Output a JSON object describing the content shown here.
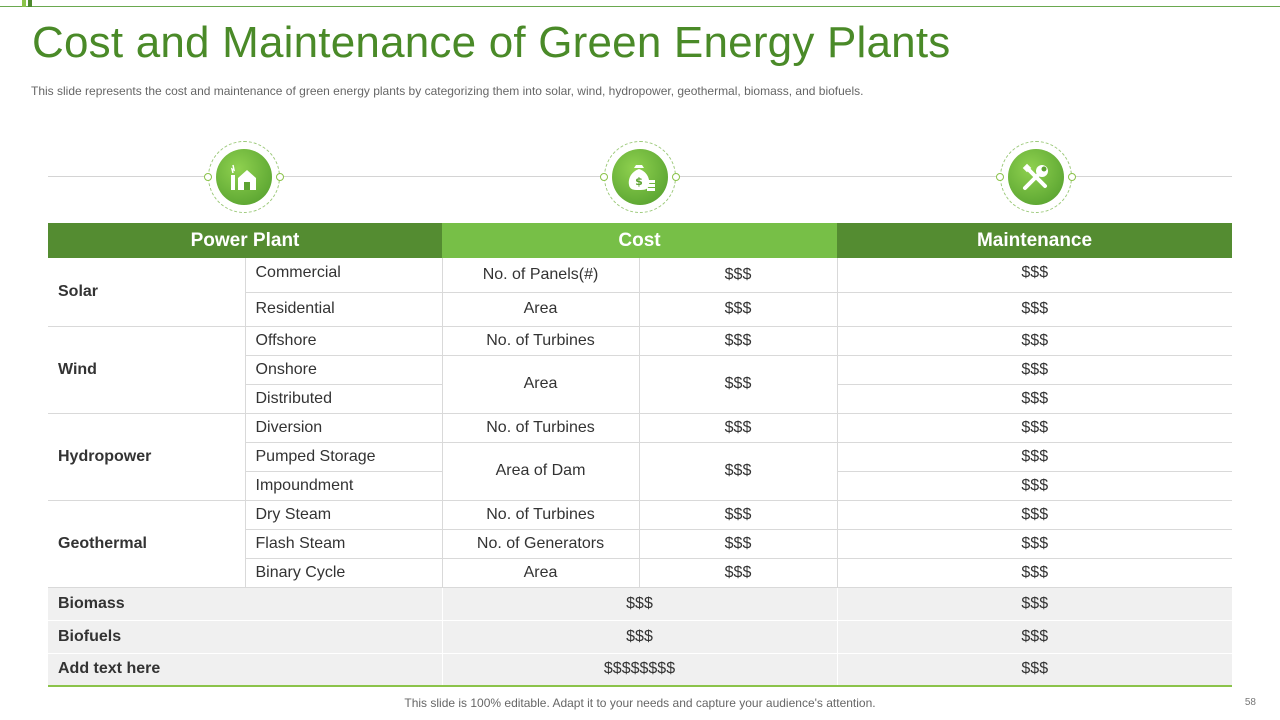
{
  "title": "Cost and Maintenance of Green Energy Plants",
  "subtitle": "This slide represents the cost and maintenance of green energy plants by categorizing them into solar, wind, hydropower,  geothermal,  biomass, and biofuels.",
  "headers": {
    "power_plant": "Power Plant",
    "cost": "Cost",
    "maintenance": "Maintenance"
  },
  "icons": [
    "power-plant-icon",
    "money-bag-icon",
    "tools-icon"
  ],
  "colors": {
    "title": "#4a8a28",
    "header_dark": "#548c31",
    "header_light": "#77bf47",
    "accent": "#8bc34a"
  },
  "rows": {
    "solar": {
      "label": "Solar",
      "commercial": {
        "label": "Commercial",
        "maintenance": "$$$"
      },
      "residential": {
        "label": "Residential",
        "maintenance": "$$$"
      },
      "cost": [
        {
          "metric": "No. of Panels(#)",
          "value": "$$$"
        },
        {
          "metric": "Area",
          "value": "$$$"
        }
      ]
    },
    "wind": {
      "label": "Wind",
      "subs": [
        {
          "label": "Offshore",
          "maintenance": "$$$"
        },
        {
          "label": "Onshore",
          "maintenance": "$$$"
        },
        {
          "label": "Distributed",
          "maintenance": "$$$"
        }
      ],
      "cost": [
        {
          "metric": "No. of Turbines",
          "value": "$$$"
        },
        {
          "metric": "Area",
          "value": "$$$"
        }
      ]
    },
    "hydropower": {
      "label": "Hydropower",
      "subs": [
        {
          "label": "Diversion",
          "maintenance": "$$$"
        },
        {
          "label": "Pumped Storage",
          "maintenance": "$$$"
        },
        {
          "label": "Impoundment",
          "maintenance": "$$$"
        }
      ],
      "cost": [
        {
          "metric": "No. of Turbines",
          "value": "$$$"
        },
        {
          "metric": "Area of Dam",
          "value": "$$$"
        }
      ]
    },
    "geothermal": {
      "label": "Geothermal",
      "subs": [
        {
          "label": "Dry Steam",
          "metric": "No. of Turbines",
          "value": "$$$",
          "maintenance": "$$$"
        },
        {
          "label": "Flash Steam",
          "metric": "No. of Generators",
          "value": "$$$",
          "maintenance": "$$$"
        },
        {
          "label": "Binary Cycle",
          "metric": "Area",
          "value": "$$$",
          "maintenance": "$$$"
        }
      ]
    },
    "biomass": {
      "label": "Biomass",
      "cost": "$$$",
      "maintenance": "$$$"
    },
    "biofuels": {
      "label": "Biofuels",
      "cost": "$$$",
      "maintenance": "$$$"
    },
    "add_text": {
      "label": "Add text here",
      "cost": "$$$$$$$$",
      "maintenance": "$$$"
    }
  },
  "footer": "This slide is 100% editable. Adapt it to your needs and capture your audience's attention.",
  "page_number": "58"
}
